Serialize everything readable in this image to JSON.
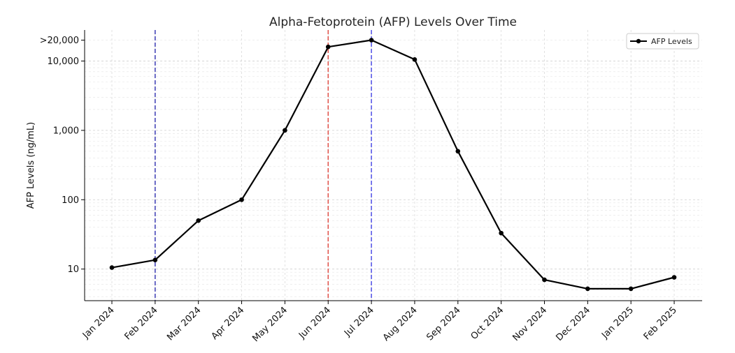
{
  "chart_data": {
    "type": "line",
    "title": "Alpha-Fetoprotein (AFP) Levels Over Time",
    "xlabel": "",
    "ylabel": "AFP Levels (ng/mL)",
    "yscale": "log",
    "ylim": [
      3.5,
      28000
    ],
    "grid": true,
    "legend_position": "top-right",
    "categories": [
      "Jan 2024",
      "Feb 2024",
      "Mar 2024",
      "Apr 2024",
      "May 2024",
      "Jun 2024",
      "Jul 2024",
      "Aug 2024",
      "Sep 2024",
      "Oct 2024",
      "Nov 2024",
      "Dec 2024",
      "Jan 2025",
      "Feb 2025"
    ],
    "series": [
      {
        "name": "AFP Levels",
        "color": "#000000",
        "values": [
          10.5,
          13.5,
          50,
          100,
          1000,
          16000,
          20000,
          10500,
          500,
          33,
          7,
          5.2,
          5.2,
          7.6
        ]
      }
    ],
    "y_ticks": [
      {
        "value": 10,
        "label": "10"
      },
      {
        "value": 100,
        "label": "100"
      },
      {
        "value": 1000,
        "label": "1,000"
      },
      {
        "value": 10000,
        "label": "10,000"
      },
      {
        "value": 20000,
        "label": ">20,000"
      }
    ],
    "reference_lines": [
      {
        "category": "Feb 2024",
        "color": "#3b3bb3"
      },
      {
        "category": "Jun 2024",
        "color": "#e0524a"
      },
      {
        "category": "Jul 2024",
        "color": "#4d4de6"
      }
    ]
  }
}
